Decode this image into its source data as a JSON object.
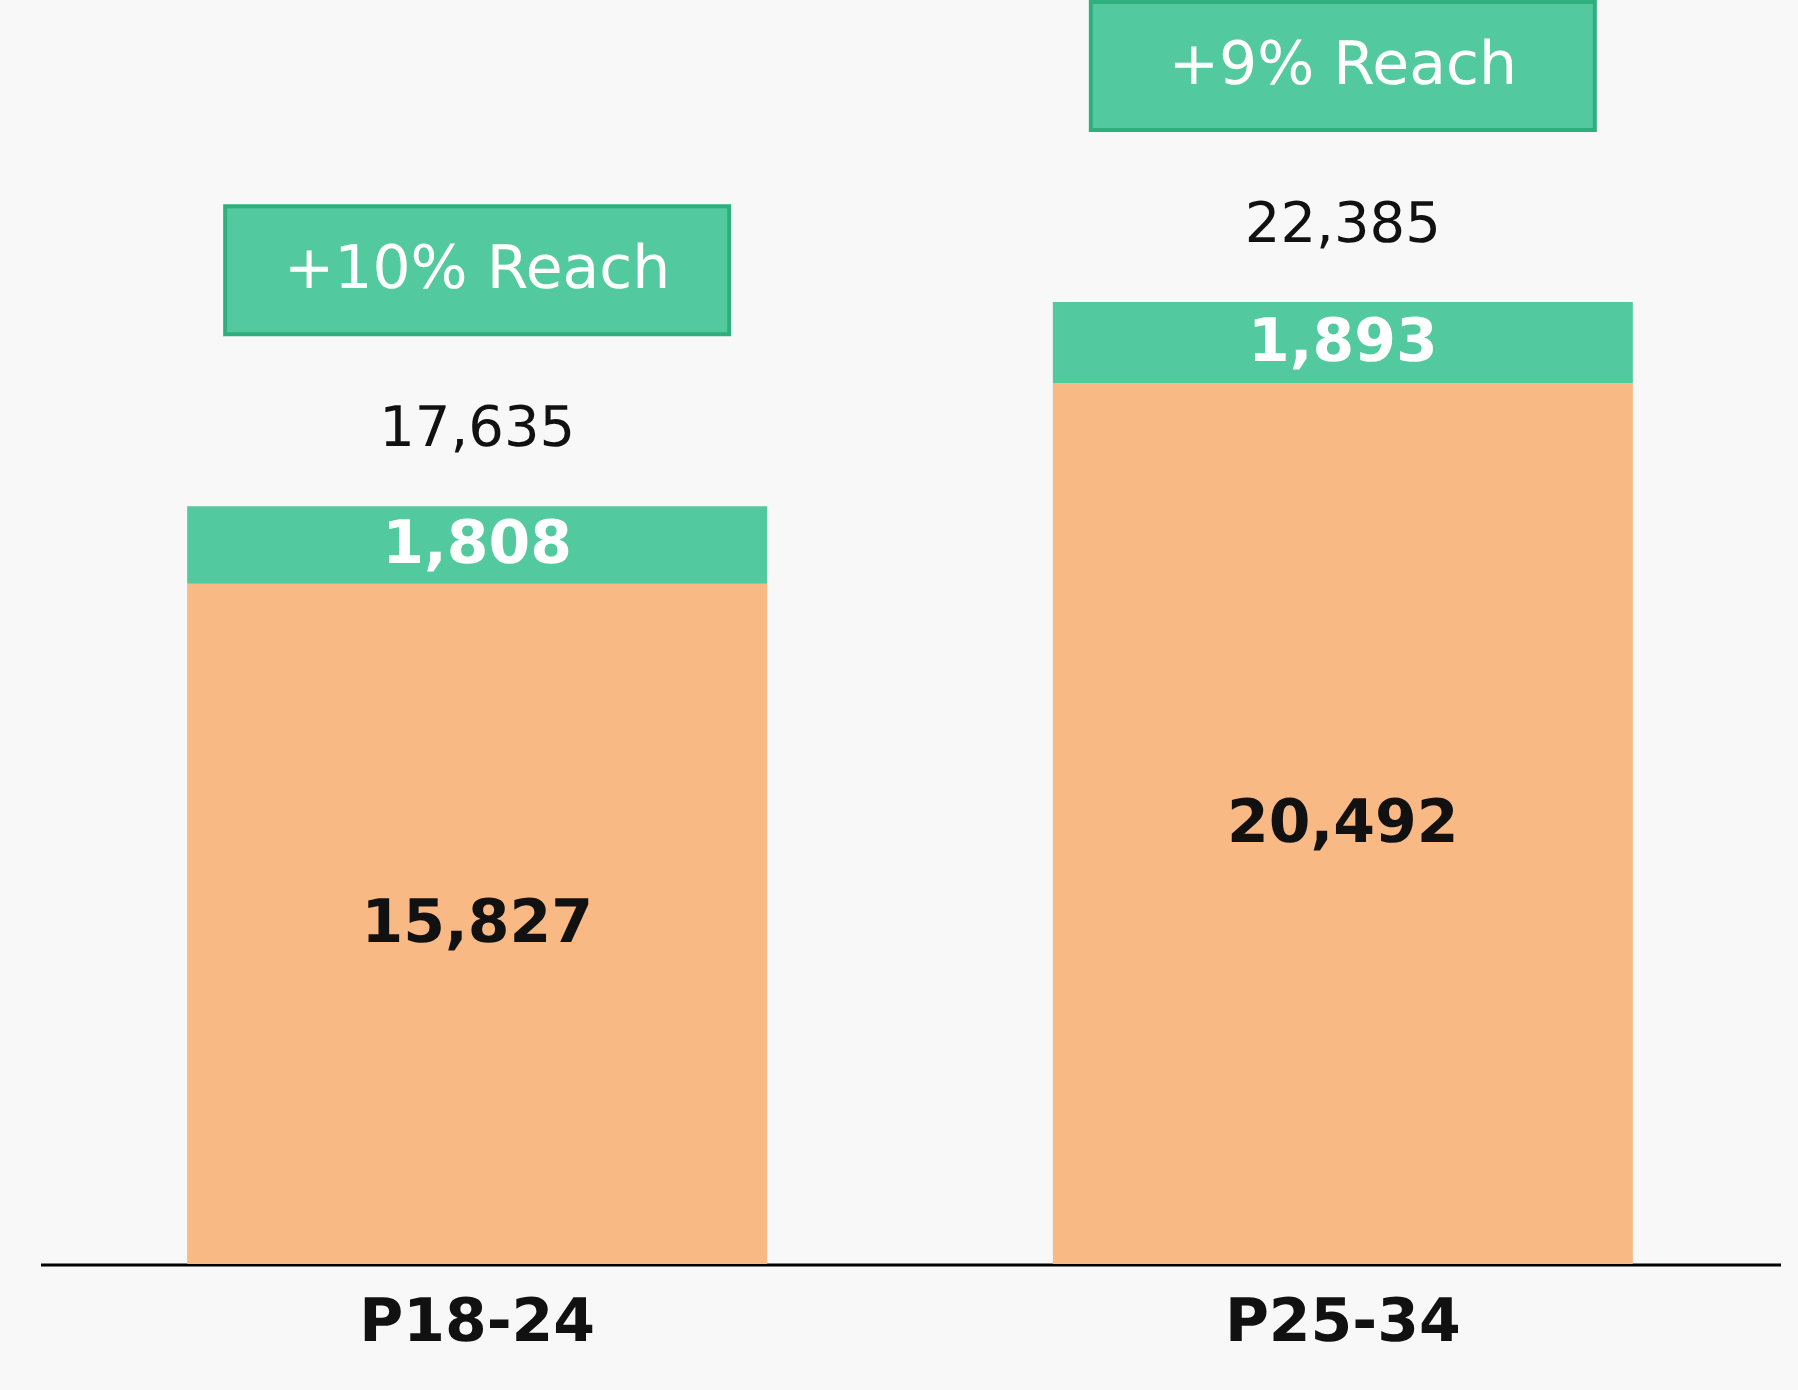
{
  "chart_data": {
    "type": "bar",
    "stacked": true,
    "categories": [
      "P18-24",
      "P25-34"
    ],
    "series": [
      {
        "color": "#f9b984",
        "values": [
          15827,
          20492
        ],
        "value_labels": [
          "15,827",
          "20,492"
        ]
      },
      {
        "color": "#52c99e",
        "values": [
          1808,
          1893
        ],
        "value_labels": [
          "1,808",
          "1,893"
        ]
      }
    ],
    "totals": [
      "17,635",
      "22,385"
    ],
    "annotations": [
      "+10% Reach",
      "+9% Reach"
    ],
    "grid": false
  }
}
